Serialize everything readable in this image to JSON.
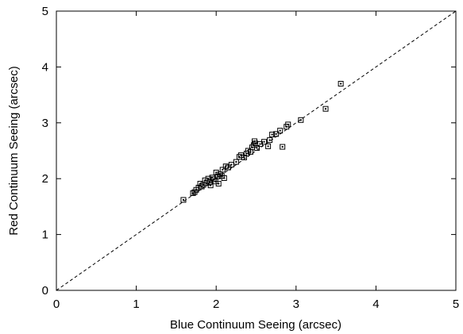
{
  "chart_data": {
    "type": "scatter",
    "title": "",
    "xlabel": "Blue Continuum Seeing (arcsec)",
    "ylabel": "Red Continuum Seeing (arcsec)",
    "xlim": [
      0,
      5
    ],
    "ylim": [
      0,
      5
    ],
    "xticks": [
      "0",
      "1",
      "2",
      "3",
      "4",
      "5"
    ],
    "yticks": [
      "0",
      "1",
      "2",
      "3",
      "4",
      "5"
    ],
    "grid": false,
    "legend": "none",
    "reference_line": {
      "style": "dashed",
      "from": [
        0,
        0
      ],
      "to": [
        5,
        5
      ]
    },
    "marker": "square-with-center-dot",
    "colors": {
      "ink": "#000000",
      "background": "#ffffff"
    },
    "points": [
      [
        1.59,
        1.62
      ],
      [
        1.71,
        1.74
      ],
      [
        1.73,
        1.76
      ],
      [
        1.75,
        1.8
      ],
      [
        1.78,
        1.84
      ],
      [
        1.8,
        1.91
      ],
      [
        1.82,
        1.86
      ],
      [
        1.84,
        1.89
      ],
      [
        1.86,
        1.97
      ],
      [
        1.88,
        1.92
      ],
      [
        1.9,
        2.0
      ],
      [
        1.92,
        1.94
      ],
      [
        1.93,
        1.88
      ],
      [
        1.95,
        2.02
      ],
      [
        1.97,
        1.99
      ],
      [
        1.99,
        1.95
      ],
      [
        2.0,
        2.11
      ],
      [
        2.02,
        2.04
      ],
      [
        2.03,
        1.91
      ],
      [
        2.05,
        2.08
      ],
      [
        2.07,
        2.05
      ],
      [
        2.08,
        2.16
      ],
      [
        2.1,
        2.01
      ],
      [
        2.12,
        2.22
      ],
      [
        2.15,
        2.2
      ],
      [
        2.19,
        2.25
      ],
      [
        2.25,
        2.3
      ],
      [
        2.29,
        2.39
      ],
      [
        2.31,
        2.42
      ],
      [
        2.35,
        2.38
      ],
      [
        2.38,
        2.45
      ],
      [
        2.4,
        2.5
      ],
      [
        2.43,
        2.48
      ],
      [
        2.45,
        2.56
      ],
      [
        2.47,
        2.6
      ],
      [
        2.48,
        2.67
      ],
      [
        2.49,
        2.63
      ],
      [
        2.51,
        2.55
      ],
      [
        2.55,
        2.62
      ],
      [
        2.6,
        2.66
      ],
      [
        2.65,
        2.58
      ],
      [
        2.67,
        2.69
      ],
      [
        2.7,
        2.79
      ],
      [
        2.75,
        2.8
      ],
      [
        2.8,
        2.86
      ],
      [
        2.83,
        2.57
      ],
      [
        2.88,
        2.93
      ],
      [
        2.9,
        2.97
      ],
      [
        3.06,
        3.05
      ],
      [
        3.37,
        3.25
      ],
      [
        3.56,
        3.7
      ]
    ]
  }
}
